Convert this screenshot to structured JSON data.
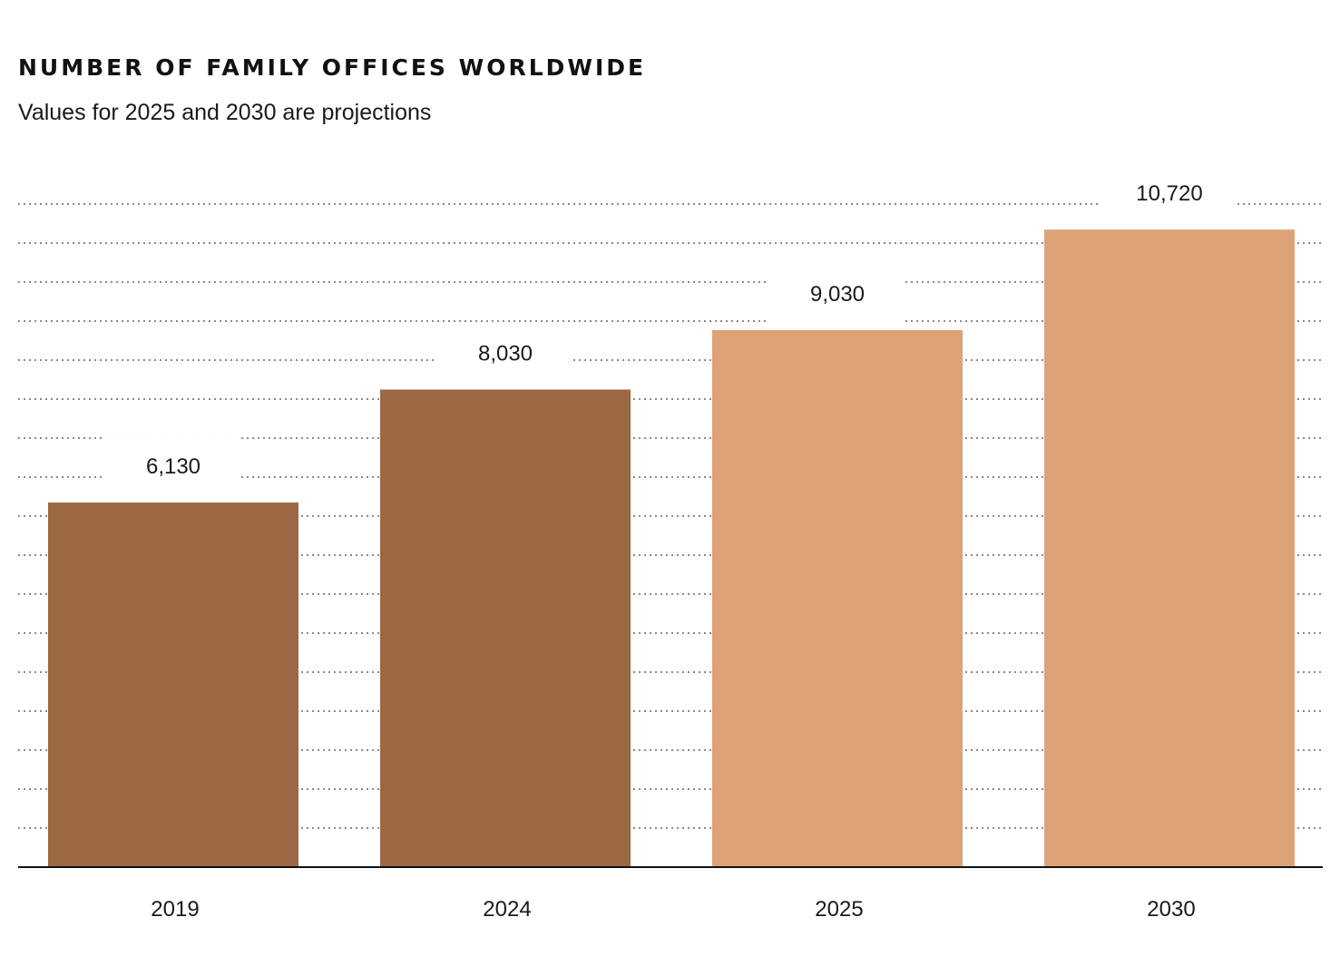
{
  "chart_data": {
    "type": "bar",
    "title": "NUMBER OF FAMILY OFFICES WORLDWIDE",
    "subtitle": "Values for 2025 and 2030 are projections",
    "categories": [
      "2019",
      "2024",
      "2025",
      "2030"
    ],
    "values": [
      6130,
      8030,
      9030,
      10720
    ],
    "value_labels": [
      "6,130",
      "8,030",
      "9,030",
      "10,720"
    ],
    "projected": [
      false,
      false,
      true,
      true
    ],
    "xlabel": "",
    "ylabel": "",
    "ylim": [
      0,
      12000
    ],
    "grid": true,
    "colors": {
      "actual": "#9c6843",
      "projection": "#dea278",
      "axis": "#111111",
      "grid": "#8a8a8a"
    }
  }
}
